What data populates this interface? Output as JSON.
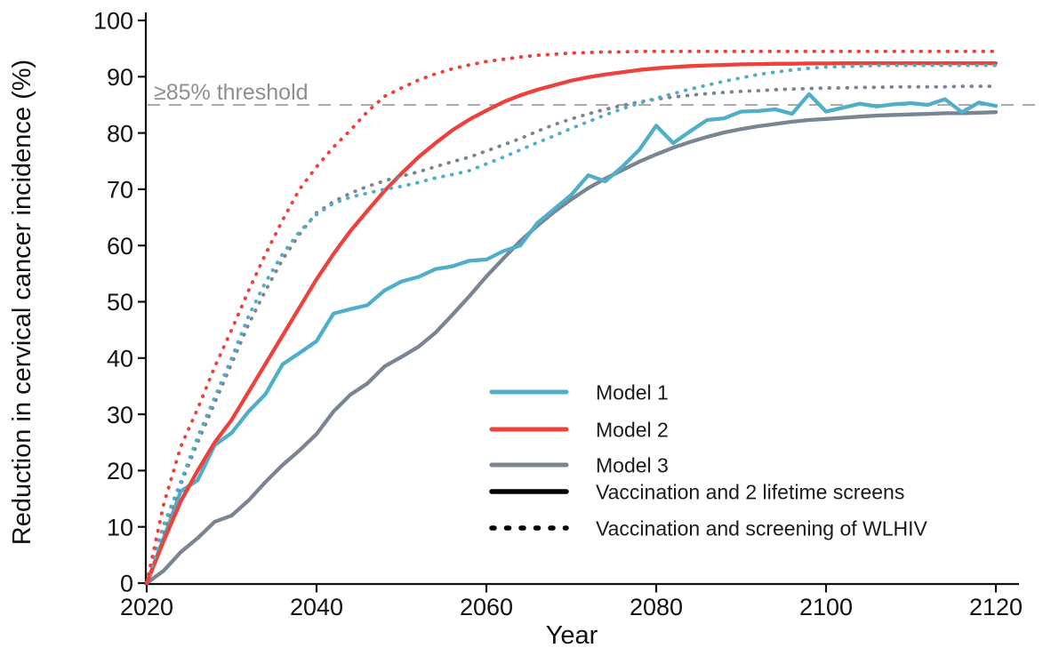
{
  "figure": {
    "ylabel": "Reduction in cervical cancer incidence (%)",
    "xlabel": "Year",
    "threshold_label": "≥85% threshold"
  },
  "colors": {
    "model1": "#4FAFC8",
    "model2": "#EE413C",
    "model3": "#7A8594",
    "threshold_line": "#ACACAC",
    "threshold_text": "#8F8F8F",
    "axis": "#111111",
    "legend_black": "#000000"
  },
  "legend": {
    "models": [
      {
        "label": "Model 1",
        "color": "#4FAFC8"
      },
      {
        "label": "Model 2",
        "color": "#EE413C"
      },
      {
        "label": "Model 3",
        "color": "#7A8594"
      }
    ],
    "strategies": [
      {
        "label": "Vaccination and 2 lifetime screens",
        "style": "solid"
      },
      {
        "label": "Vaccination and screening of WLHIV",
        "style": "dotted"
      }
    ]
  },
  "chart_data": {
    "type": "line",
    "title": "",
    "xlabel": "Year",
    "ylabel": "Reduction in cervical cancer incidence (%)",
    "xlim": [
      2020,
      2120
    ],
    "ylim": [
      0,
      100
    ],
    "xticks": [
      2020,
      2040,
      2060,
      2080,
      2100,
      2120
    ],
    "yticks": [
      0,
      10,
      20,
      30,
      40,
      50,
      60,
      70,
      80,
      90,
      100
    ],
    "grid": false,
    "legend_position": "inside lower right",
    "threshold": {
      "value": 85,
      "label": "≥85% threshold"
    },
    "x": [
      2020,
      2022,
      2024,
      2026,
      2028,
      2030,
      2032,
      2034,
      2036,
      2038,
      2040,
      2042,
      2044,
      2046,
      2048,
      2050,
      2052,
      2054,
      2056,
      2058,
      2060,
      2062,
      2064,
      2066,
      2068,
      2070,
      2072,
      2074,
      2076,
      2078,
      2080,
      2082,
      2084,
      2086,
      2088,
      2090,
      2092,
      2094,
      2096,
      2098,
      2100,
      2102,
      2104,
      2106,
      2108,
      2110,
      2112,
      2114,
      2116,
      2118,
      2120
    ],
    "series": [
      {
        "name": "Model 1",
        "strategy": "Vaccination and 2 lifetime screens",
        "line": "solid",
        "color": "#4FAFC8",
        "values": [
          0,
          8,
          16.3,
          18.3,
          24.5,
          26.7,
          30.5,
          33.6,
          38.9,
          40.9,
          43,
          47.9,
          48.7,
          49.4,
          52,
          53.6,
          54.4,
          55.8,
          56.3,
          57.3,
          57.5,
          59,
          60,
          64,
          66.5,
          69,
          72.5,
          71.4,
          74,
          77,
          81.3,
          78.2,
          80.3,
          82.3,
          82.6,
          83.8,
          83.9,
          84.2,
          83.4,
          86.9,
          83.8,
          84.5,
          85.2,
          84.7,
          85.1,
          85.3,
          85,
          86,
          83.7,
          85.4,
          84.8
        ]
      },
      {
        "name": "Model 2",
        "strategy": "Vaccination and 2 lifetime screens",
        "line": "solid",
        "color": "#EE413C",
        "values": [
          0,
          7.5,
          14.5,
          20,
          25,
          29,
          34,
          39,
          44,
          49,
          54,
          58.5,
          62.6,
          66.2,
          69.7,
          72.8,
          75.7,
          78.2,
          80.5,
          82.4,
          84,
          85.5,
          86.7,
          87.7,
          88.5,
          89.3,
          89.9,
          90.4,
          90.8,
          91.2,
          91.5,
          91.7,
          91.9,
          92,
          92.1,
          92.2,
          92.25,
          92.3,
          92.3,
          92.35,
          92.35,
          92.4,
          92.4,
          92.4,
          92.4,
          92.4,
          92.4,
          92.4,
          92.4,
          92.4,
          92.4
        ]
      },
      {
        "name": "Model 3",
        "strategy": "Vaccination and 2 lifetime screens",
        "line": "solid",
        "color": "#7A8594",
        "values": [
          0,
          2.2,
          5.5,
          8,
          10.9,
          12,
          14.7,
          18,
          21,
          23.6,
          26.5,
          30.5,
          33.5,
          35.5,
          38.5,
          40.2,
          42,
          44.5,
          47.7,
          51,
          54.5,
          57.7,
          60.8,
          63.5,
          66,
          68.2,
          70.2,
          71.9,
          73.4,
          74.9,
          76.2,
          77.4,
          78.4,
          79.3,
          80.1,
          80.7,
          81.2,
          81.6,
          82,
          82.3,
          82.5,
          82.7,
          82.9,
          83.1,
          83.2,
          83.3,
          83.4,
          83.5,
          83.5,
          83.6,
          83.7
        ]
      },
      {
        "name": "Model 1",
        "strategy": "Vaccination and screening of WLHIV",
        "line": "dotted",
        "color": "#4FAFC8",
        "values": [
          0,
          10.4,
          18,
          26,
          33,
          40,
          47.5,
          53.5,
          58.5,
          62.5,
          65.5,
          67.5,
          68.6,
          69.3,
          70,
          70.5,
          71.2,
          72,
          72.6,
          73.3,
          74.5,
          75.7,
          77,
          78.3,
          79.5,
          80.8,
          82,
          83.2,
          84.3,
          85.3,
          86.2,
          87,
          87.8,
          88.5,
          89.2,
          89.8,
          90.4,
          90.8,
          91.2,
          91.5,
          91.7,
          91.8,
          91.9,
          92,
          92,
          92,
          92,
          92,
          92,
          92,
          92
        ]
      },
      {
        "name": "Model 2",
        "strategy": "Vaccination and screening of WLHIV",
        "line": "dotted",
        "color": "#EE413C",
        "values": [
          0,
          14,
          24.2,
          31,
          38.4,
          45,
          52,
          58.5,
          64.5,
          70,
          74,
          77.5,
          80.5,
          83.8,
          86.5,
          88,
          89.4,
          90.5,
          91.4,
          92.1,
          92.7,
          93.1,
          93.5,
          93.8,
          94,
          94.2,
          94.3,
          94.4,
          94.4,
          94.5,
          94.5,
          94.5,
          94.5,
          94.5,
          94.5,
          94.5,
          94.5,
          94.5,
          94.5,
          94.5,
          94.5,
          94.5,
          94.5,
          94.5,
          94.5,
          94.5,
          94.5,
          94.5,
          94.5,
          94.5,
          94.5
        ]
      },
      {
        "name": "Model 3",
        "strategy": "Vaccination and screening of WLHIV",
        "line": "dotted",
        "color": "#7A8594",
        "values": [
          0,
          9,
          17.5,
          25,
          32,
          39,
          46,
          52,
          57.5,
          62,
          65.8,
          67.8,
          69.3,
          70.5,
          71.5,
          72.3,
          73.1,
          74,
          74.9,
          75.7,
          76.8,
          77.9,
          79,
          80.3,
          81.5,
          82.5,
          83.4,
          84.2,
          84.9,
          85.5,
          86,
          86.4,
          86.7,
          87,
          87.2,
          87.4,
          87.5,
          87.7,
          87.8,
          87.9,
          88,
          88,
          88.1,
          88.1,
          88.2,
          88.2,
          88.2,
          88.2,
          88.3,
          88.3,
          88.3
        ]
      }
    ]
  }
}
